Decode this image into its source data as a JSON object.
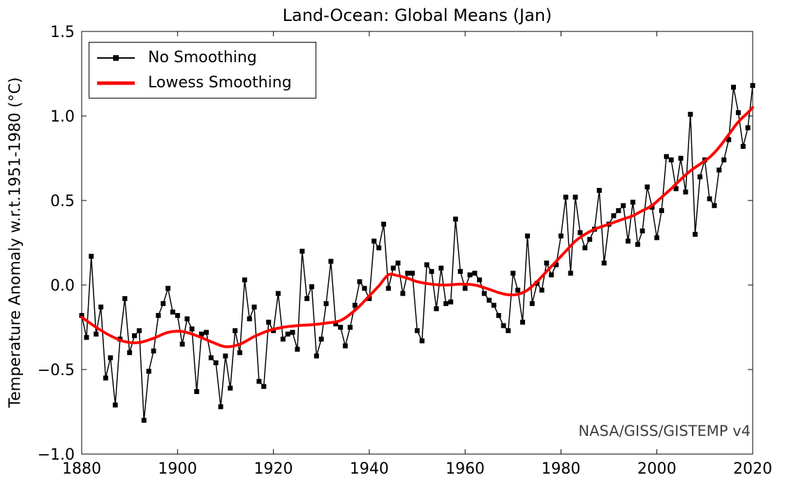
{
  "figure": {
    "background": "#ffffff"
  },
  "chart_data": {
    "type": "line",
    "title": "Land-Ocean: Global Means (Jan)",
    "xlabel": "",
    "ylabel": "Temperature Anomaly w.r.t.1951-1980 (°C)",
    "annotation": "NASA/GISS/GISTEMP v4",
    "annotation_color": "#404040",
    "xlim": [
      1880,
      2020
    ],
    "ylim": [
      -1.0,
      1.5
    ],
    "xticks": [
      1880,
      1900,
      1920,
      1940,
      1960,
      1980,
      2000,
      2020
    ],
    "xtick_labels": [
      "1880",
      "1900",
      "1920",
      "1940",
      "1960",
      "1980",
      "2000",
      "2020"
    ],
    "yticks": [
      -1.0,
      -0.5,
      0.0,
      0.5,
      1.0,
      1.5
    ],
    "ytick_labels": [
      "−1.0",
      "−0.5",
      "0.0",
      "0.5",
      "1.0",
      "1.5"
    ],
    "grid": false,
    "tick_direction": "in",
    "legend_position": "upper-left",
    "series": [
      {
        "name": "No Smoothing",
        "color": "#000000",
        "line_width": 1.5,
        "marker": "square",
        "marker_size": 7,
        "x_start": 1880,
        "x_step": 1,
        "values": [
          -0.18,
          -0.31,
          0.17,
          -0.29,
          -0.13,
          -0.55,
          -0.43,
          -0.71,
          -0.32,
          -0.08,
          -0.4,
          -0.3,
          -0.27,
          -0.8,
          -0.51,
          -0.39,
          -0.18,
          -0.11,
          -0.02,
          -0.16,
          -0.18,
          -0.35,
          -0.2,
          -0.26,
          -0.63,
          -0.29,
          -0.28,
          -0.43,
          -0.46,
          -0.72,
          -0.42,
          -0.61,
          -0.27,
          -0.4,
          0.03,
          -0.2,
          -0.13,
          -0.57,
          -0.6,
          -0.22,
          -0.27,
          -0.05,
          -0.32,
          -0.29,
          -0.28,
          -0.38,
          0.2,
          -0.08,
          -0.01,
          -0.42,
          -0.32,
          -0.11,
          0.14,
          -0.23,
          -0.25,
          -0.36,
          -0.25,
          -0.12,
          0.02,
          -0.02,
          -0.08,
          0.26,
          0.22,
          0.36,
          -0.02,
          0.1,
          0.13,
          -0.05,
          0.07,
          0.07,
          -0.27,
          -0.33,
          0.12,
          0.08,
          -0.14,
          0.1,
          -0.11,
          -0.1,
          0.39,
          0.08,
          -0.02,
          0.06,
          0.07,
          0.03,
          -0.05,
          -0.09,
          -0.12,
          -0.18,
          -0.24,
          -0.27,
          0.07,
          -0.03,
          -0.22,
          0.29,
          -0.11,
          0.01,
          -0.03,
          0.13,
          0.06,
          0.12,
          0.29,
          0.52,
          0.07,
          0.52,
          0.31,
          0.22,
          0.27,
          0.33,
          0.56,
          0.13,
          0.36,
          0.41,
          0.44,
          0.47,
          0.26,
          0.49,
          0.24,
          0.32,
          0.58,
          0.46,
          0.28,
          0.44,
          0.76,
          0.74,
          0.57,
          0.75,
          0.55,
          1.01,
          0.3,
          0.64,
          0.74,
          0.51,
          0.47,
          0.68,
          0.74,
          0.86,
          1.17,
          1.02,
          0.82,
          0.93,
          1.18
        ]
      },
      {
        "name": "Lowess Smoothing",
        "color": "#ff0000",
        "line_width": 4,
        "smooth": true,
        "points": [
          [
            1880,
            -0.19
          ],
          [
            1883,
            -0.25
          ],
          [
            1886,
            -0.3
          ],
          [
            1889,
            -0.335
          ],
          [
            1892,
            -0.34
          ],
          [
            1895,
            -0.315
          ],
          [
            1898,
            -0.28
          ],
          [
            1901,
            -0.275
          ],
          [
            1904,
            -0.3
          ],
          [
            1907,
            -0.335
          ],
          [
            1910,
            -0.365
          ],
          [
            1913,
            -0.35
          ],
          [
            1916,
            -0.305
          ],
          [
            1919,
            -0.27
          ],
          [
            1922,
            -0.25
          ],
          [
            1925,
            -0.24
          ],
          [
            1928,
            -0.235
          ],
          [
            1931,
            -0.225
          ],
          [
            1934,
            -0.21
          ],
          [
            1937,
            -0.15
          ],
          [
            1940,
            -0.065
          ],
          [
            1942,
            -0.005
          ],
          [
            1944,
            0.06
          ],
          [
            1946,
            0.055
          ],
          [
            1948,
            0.04
          ],
          [
            1950,
            0.02
          ],
          [
            1953,
            0.005
          ],
          [
            1956,
            0.0
          ],
          [
            1959,
            0.005
          ],
          [
            1962,
            0.0
          ],
          [
            1965,
            -0.025
          ],
          [
            1967,
            -0.045
          ],
          [
            1969,
            -0.058
          ],
          [
            1971,
            -0.055
          ],
          [
            1973,
            -0.03
          ],
          [
            1975,
            0.02
          ],
          [
            1977,
            0.08
          ],
          [
            1979,
            0.14
          ],
          [
            1981,
            0.2
          ],
          [
            1983,
            0.26
          ],
          [
            1985,
            0.3
          ],
          [
            1987,
            0.33
          ],
          [
            1989,
            0.35
          ],
          [
            1991,
            0.37
          ],
          [
            1993,
            0.39
          ],
          [
            1995,
            0.41
          ],
          [
            1997,
            0.44
          ],
          [
            1999,
            0.47
          ],
          [
            2001,
            0.52
          ],
          [
            2003,
            0.57
          ],
          [
            2005,
            0.625
          ],
          [
            2007,
            0.675
          ],
          [
            2009,
            0.715
          ],
          [
            2011,
            0.755
          ],
          [
            2013,
            0.815
          ],
          [
            2015,
            0.89
          ],
          [
            2017,
            0.965
          ],
          [
            2019,
            1.02
          ],
          [
            2020,
            1.05
          ]
        ]
      }
    ]
  },
  "legend": {
    "items": [
      {
        "label": "No Smoothing"
      },
      {
        "label": "Lowess Smoothing"
      }
    ]
  }
}
